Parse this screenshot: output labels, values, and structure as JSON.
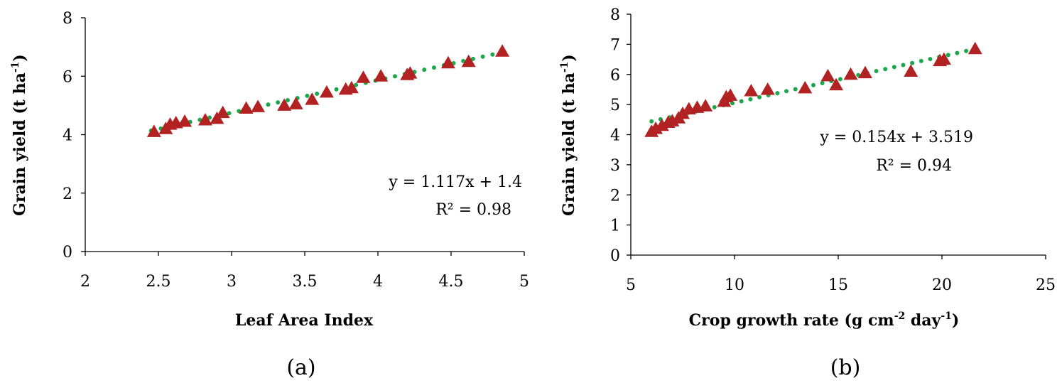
{
  "colors": {
    "marker": "#b22222",
    "trend": "#1aa84a",
    "axis": "#000000"
  },
  "chart_data": [
    {
      "type": "scatter",
      "panel_label": "(a)",
      "xlabel": "Leaf  Area Index",
      "ylabel_main": "Grain yield (t ha",
      "ylabel_sup": "-1",
      "ylabel_end": ")",
      "xlim": [
        2,
        5
      ],
      "ylim": [
        0,
        8
      ],
      "xticks": [
        2,
        2.5,
        3,
        3.5,
        4,
        4.5,
        5
      ],
      "xtick_labels": [
        "2",
        "2.5",
        "3",
        "3.5",
        "4",
        "4.5",
        "5"
      ],
      "yticks": [
        0,
        2,
        4,
        6,
        8
      ],
      "ytick_labels": [
        "0",
        "2",
        "4",
        "6",
        "8"
      ],
      "equation": "y = 1.117x + 1.4",
      "r2": "R² = 0.98",
      "trend": {
        "slope": 1.117,
        "intercept": 1.4,
        "x_range": [
          2.45,
          4.85
        ]
      },
      "points": [
        [
          2.47,
          4.1
        ],
        [
          2.55,
          4.2
        ],
        [
          2.58,
          4.35
        ],
        [
          2.62,
          4.4
        ],
        [
          2.68,
          4.45
        ],
        [
          2.82,
          4.5
        ],
        [
          2.9,
          4.55
        ],
        [
          2.94,
          4.75
        ],
        [
          3.1,
          4.9
        ],
        [
          3.18,
          4.95
        ],
        [
          3.36,
          5.0
        ],
        [
          3.44,
          5.05
        ],
        [
          3.55,
          5.2
        ],
        [
          3.65,
          5.45
        ],
        [
          3.78,
          5.55
        ],
        [
          3.82,
          5.6
        ],
        [
          3.9,
          5.95
        ],
        [
          4.02,
          6.0
        ],
        [
          4.2,
          6.05
        ],
        [
          4.22,
          6.1
        ],
        [
          4.48,
          6.45
        ],
        [
          4.62,
          6.5
        ],
        [
          4.85,
          6.85
        ]
      ]
    },
    {
      "type": "scatter",
      "panel_label": "(b)",
      "xlabel_main": "Crop growth rate (g cm",
      "xlabel_sup1": "-2",
      "xlabel_mid": " day",
      "xlabel_sup2": "-1",
      "xlabel_end": ")",
      "ylabel_main": "Grain yield (t ha",
      "ylabel_sup": "-1",
      "ylabel_end": ")",
      "xlim": [
        5,
        25
      ],
      "ylim": [
        0,
        8
      ],
      "xticks": [
        5,
        10,
        15,
        20,
        25
      ],
      "xtick_labels": [
        "5",
        "10",
        "15",
        "20",
        "25"
      ],
      "yticks": [
        0,
        1,
        2,
        3,
        4,
        5,
        6,
        7,
        8
      ],
      "ytick_labels": [
        "0",
        "1",
        "2",
        "3",
        "4",
        "5",
        "6",
        "7",
        "8"
      ],
      "equation": "y = 0.154x + 3.519",
      "r2": "R² = 0.94",
      "trend": {
        "slope": 0.154,
        "intercept": 3.519,
        "x_range": [
          6,
          21.6
        ]
      },
      "points": [
        [
          6.0,
          4.1
        ],
        [
          6.2,
          4.2
        ],
        [
          6.5,
          4.3
        ],
        [
          6.8,
          4.4
        ],
        [
          7.0,
          4.45
        ],
        [
          7.3,
          4.55
        ],
        [
          7.5,
          4.7
        ],
        [
          7.8,
          4.85
        ],
        [
          8.2,
          4.9
        ],
        [
          8.6,
          4.95
        ],
        [
          9.5,
          5.1
        ],
        [
          9.6,
          5.25
        ],
        [
          9.8,
          5.3
        ],
        [
          10.8,
          5.45
        ],
        [
          11.6,
          5.5
        ],
        [
          13.4,
          5.55
        ],
        [
          14.5,
          5.95
        ],
        [
          14.9,
          5.65
        ],
        [
          15.6,
          6.0
        ],
        [
          16.3,
          6.05
        ],
        [
          18.5,
          6.1
        ],
        [
          19.9,
          6.45
        ],
        [
          20.1,
          6.5
        ],
        [
          21.6,
          6.85
        ]
      ]
    }
  ]
}
